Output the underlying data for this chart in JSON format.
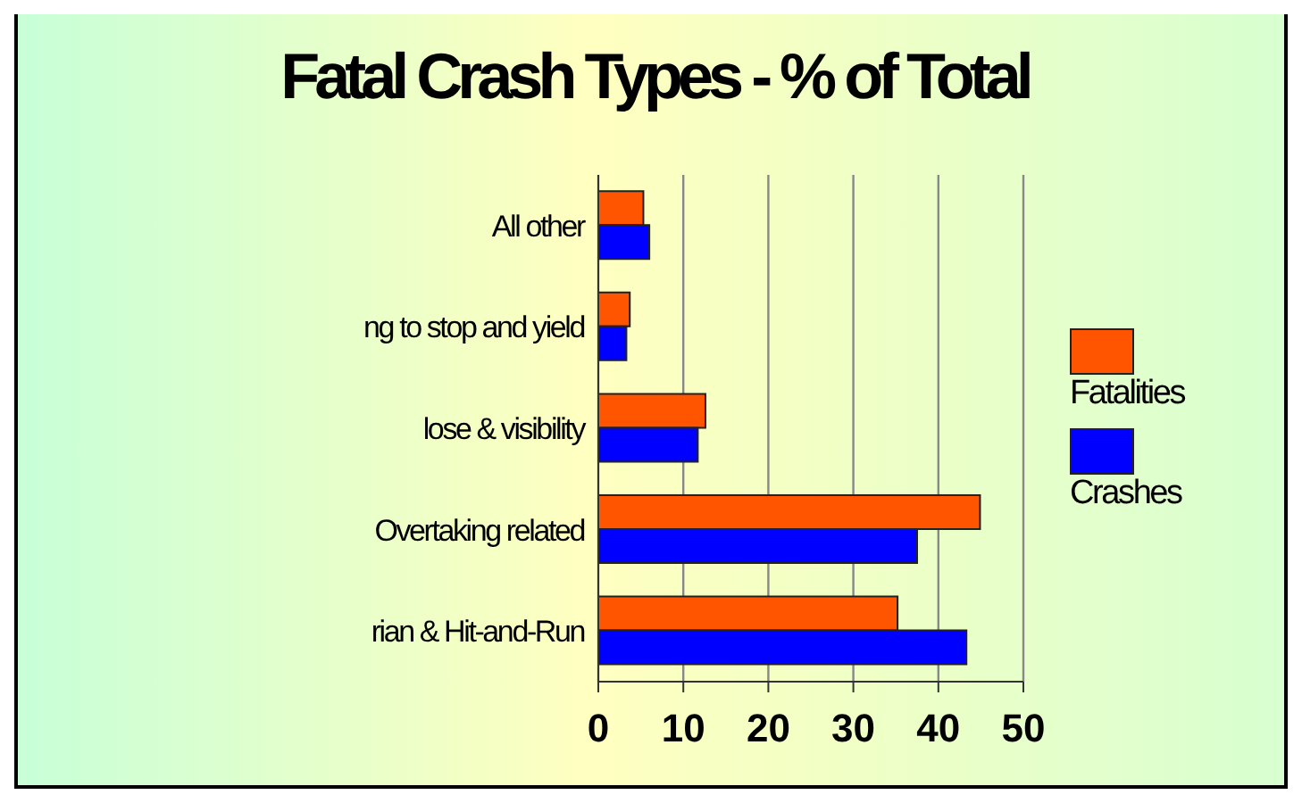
{
  "chart_data": {
    "type": "bar",
    "title": "Fatal Crash Types - % of Total",
    "orientation": "horizontal",
    "categories": [
      "All other",
      "ng to stop and yield",
      "lose & visibility",
      "Overtaking related",
      "rian & Hit-and-Run"
    ],
    "series": [
      {
        "name": "Fatalities",
        "color": "#ff5500",
        "values": [
          5.3,
          3.7,
          12.6,
          44.9,
          35.2
        ]
      },
      {
        "name": "Crashes",
        "color": "#0000ff",
        "values": [
          6.0,
          3.3,
          11.7,
          37.5,
          43.3
        ]
      }
    ],
    "xlim": [
      0,
      50
    ],
    "xticks": [
      0,
      10,
      20,
      30,
      40,
      50
    ],
    "grid": "x",
    "legend": "right"
  }
}
